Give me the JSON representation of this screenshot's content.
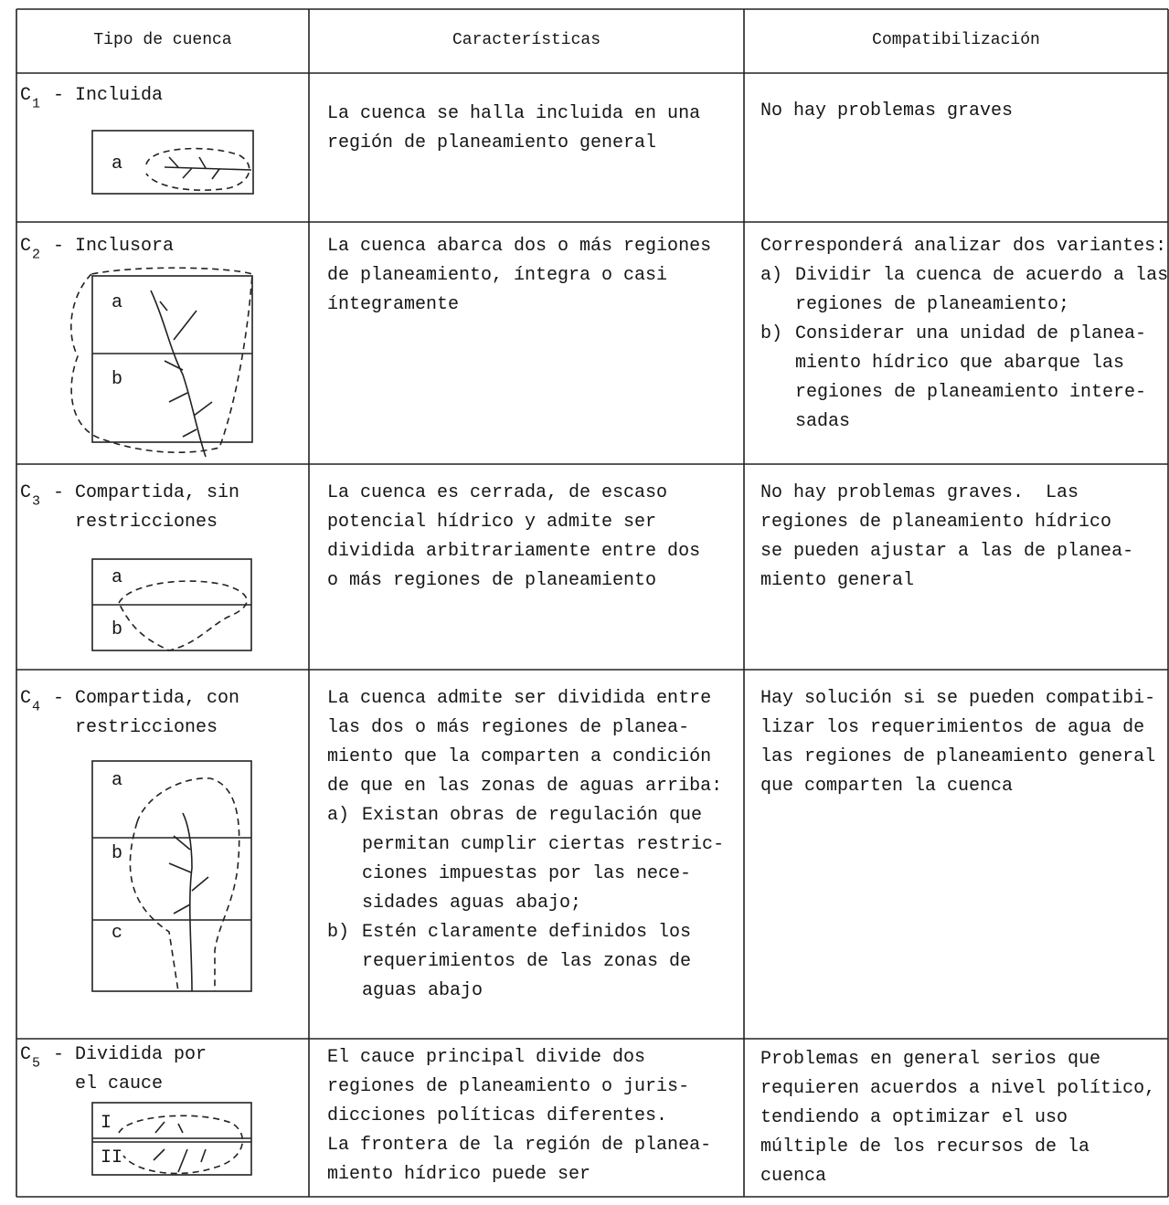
{
  "table": {
    "headers": [
      "Tipo de cuenca",
      "Características",
      "Compatibilización"
    ],
    "rows": [
      {
        "type": {
          "code": "C",
          "sub": "1",
          "lines": [
            "- Incluida"
          ]
        },
        "diagram": [
          "a"
        ],
        "characteristics": {
          "lines": [
            "La cuenca se halla incluida en una",
            "región de planeamiento general"
          ]
        },
        "compatibility": {
          "lines": [
            "No hay problemas graves"
          ]
        }
      },
      {
        "type": {
          "code": "C",
          "sub": "2",
          "lines": [
            "- Inclusora"
          ]
        },
        "diagram": [
          "a",
          "b"
        ],
        "characteristics": {
          "lines": [
            "La cuenca abarca dos o más regiones",
            "de planeamiento, íntegra o casi",
            "íntegramente"
          ]
        },
        "compatibility": {
          "lines": [
            "Corresponderá analizar dos variantes:"
          ],
          "items": [
            {
              "marker": "a)",
              "lines": [
                "Dividir la cuenca de acuerdo a las",
                "regiones de planeamiento;"
              ]
            },
            {
              "marker": "b)",
              "lines": [
                "Considerar una unidad de planea-",
                "miento hídrico que abarque las",
                "regiones de planeamiento intere-",
                "sadas"
              ]
            }
          ]
        }
      },
      {
        "type": {
          "code": "C",
          "sub": "3",
          "lines": [
            "- Compartida, sin",
            "restricciones"
          ]
        },
        "diagram": [
          "a",
          "b"
        ],
        "characteristics": {
          "lines": [
            "La cuenca es cerrada, de escaso",
            "potencial hídrico y admite ser",
            "dividida arbitrariamente entre dos",
            "o más regiones de planeamiento"
          ]
        },
        "compatibility": {
          "lines": [
            "No hay problemas graves.  Las",
            "regiones de planeamiento hídrico",
            "se pueden ajustar a las de planea-",
            "miento general"
          ]
        }
      },
      {
        "type": {
          "code": "C",
          "sub": "4",
          "lines": [
            "- Compartida, con",
            "restricciones"
          ]
        },
        "diagram": [
          "a",
          "b",
          "c"
        ],
        "characteristics": {
          "lines": [
            "La cuenca admite ser dividida entre",
            "las dos o más regiones de planea-",
            "miento que la comparten a condición",
            "de que en las zonas de aguas arriba:"
          ],
          "items": [
            {
              "marker": "a)",
              "lines": [
                "Existan obras de regulación que",
                "permitan cumplir ciertas restric-",
                "ciones impuestas por las nece-",
                "sidades aguas abajo;"
              ]
            },
            {
              "marker": "b)",
              "lines": [
                "Estén claramente definidos los",
                "requerimientos de las zonas de",
                "aguas abajo"
              ]
            }
          ]
        },
        "compatibility": {
          "lines": [
            "Hay solución si se pueden compatibi-",
            "lizar los requerimientos de agua de",
            "las regiones de planeamiento general",
            "que comparten la cuenca"
          ]
        }
      },
      {
        "type": {
          "code": "C",
          "sub": "5",
          "lines": [
            "- Dividida por",
            "el cauce"
          ]
        },
        "diagram": [
          "I",
          "II"
        ],
        "characteristics": {
          "lines": [
            "El cauce principal divide dos",
            "regiones de planeamiento o juris-",
            "dicciones políticas diferentes.",
            "La frontera de la región de planea-",
            "miento hídrico puede ser"
          ]
        },
        "compatibility": {
          "lines": [
            "Problemas en general serios que",
            "requieren acuerdos a nivel político,",
            "tendiendo a optimizar el uso",
            "múltiple de los recursos de la",
            "cuenca"
          ]
        }
      }
    ]
  }
}
